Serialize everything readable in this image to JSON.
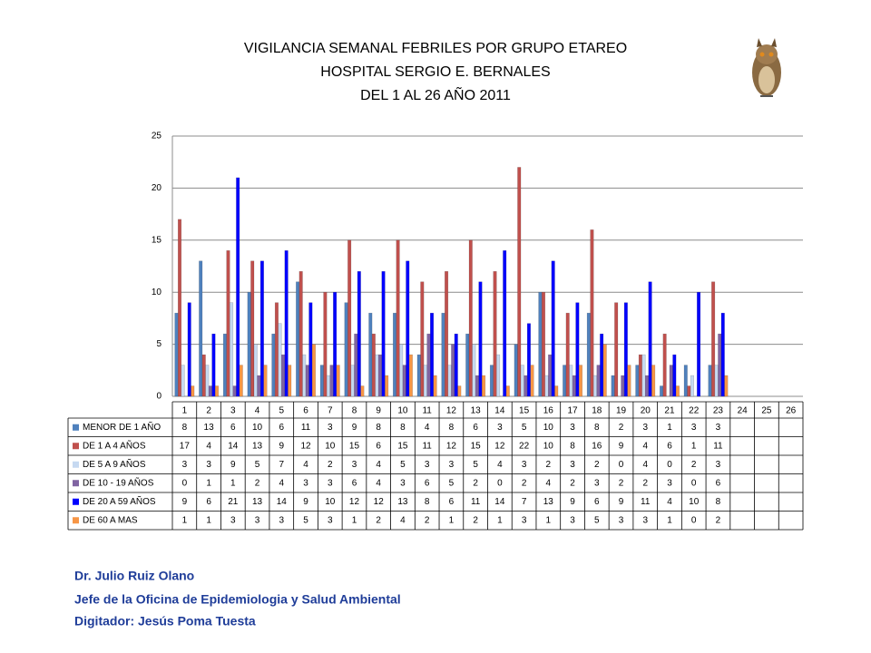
{
  "chart_data": {
    "type": "bar",
    "title": [
      "VIGILANCIA SEMANAL FEBRILES POR GRUPO ETAREO",
      "HOSPITAL SERGIO E. BERNALES",
      "DEL 1 AL 26 AÑO 2011"
    ],
    "categories": [
      "1",
      "2",
      "3",
      "4",
      "5",
      "6",
      "7",
      "8",
      "9",
      "10",
      "11",
      "12",
      "13",
      "14",
      "15",
      "16",
      "17",
      "18",
      "19",
      "20",
      "21",
      "22",
      "23",
      "24",
      "25",
      "26"
    ],
    "series": [
      {
        "name": "MENOR DE 1 AÑO",
        "color": "#4f81bd",
        "values": [
          8,
          13,
          6,
          10,
          6,
          11,
          3,
          9,
          8,
          8,
          4,
          8,
          6,
          3,
          5,
          10,
          3,
          8,
          2,
          3,
          1,
          3,
          3,
          null,
          null,
          null
        ]
      },
      {
        "name": "DE 1 A 4 AÑOS",
        "color": "#c0504d",
        "values": [
          17,
          4,
          14,
          13,
          9,
          12,
          10,
          15,
          6,
          15,
          11,
          12,
          15,
          12,
          22,
          10,
          8,
          16,
          9,
          4,
          6,
          1,
          11,
          null,
          null,
          null
        ]
      },
      {
        "name": "DE 5 A 9 AÑOS",
        "color": "#c6d9f1",
        "values": [
          3,
          3,
          9,
          5,
          7,
          4,
          2,
          3,
          4,
          5,
          3,
          3,
          5,
          4,
          3,
          2,
          3,
          2,
          0,
          4,
          0,
          2,
          3,
          null,
          null,
          null
        ]
      },
      {
        "name": "DE 10 - 19 AÑOS",
        "color": "#8064a2",
        "values": [
          0,
          1,
          1,
          2,
          4,
          3,
          3,
          6,
          4,
          3,
          6,
          5,
          2,
          0,
          2,
          4,
          2,
          3,
          2,
          2,
          3,
          0,
          6,
          null,
          null,
          null
        ]
      },
      {
        "name": "DE 20 A 59 AÑOS",
        "color": "#0000ff",
        "values": [
          9,
          6,
          21,
          13,
          14,
          9,
          10,
          12,
          12,
          13,
          8,
          6,
          11,
          14,
          7,
          13,
          9,
          6,
          9,
          11,
          4,
          10,
          8,
          null,
          null,
          null
        ]
      },
      {
        "name": "DE 60 A  MAS",
        "color": "#f79646",
        "values": [
          1,
          1,
          3,
          3,
          3,
          5,
          3,
          1,
          2,
          4,
          2,
          1,
          2,
          1,
          3,
          1,
          3,
          5,
          3,
          3,
          1,
          0,
          2,
          null,
          null,
          null
        ]
      }
    ],
    "ylim": [
      0,
      25
    ],
    "yticks": [
      0,
      5,
      10,
      15,
      20,
      25
    ],
    "grid": true
  },
  "footer": [
    "Dr.  Julio Ruiz Olano",
    "Jefe de la Oficina de Epidemiologia y  Salud Ambiental",
    "Digitador: Jesús Poma Tuesta"
  ]
}
